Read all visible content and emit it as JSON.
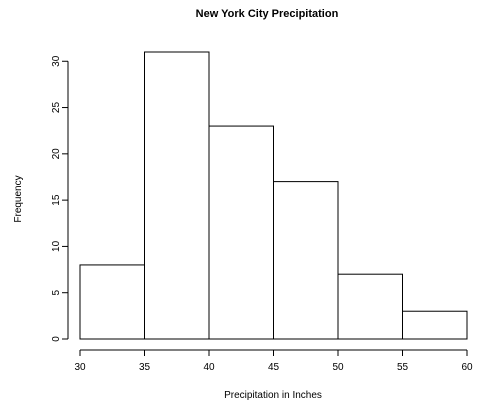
{
  "chart_data": {
    "type": "bar",
    "title": "New York City Precipitation",
    "xlabel": "Precipitation in Inches",
    "ylabel": "Frequency",
    "bins": [
      {
        "start": 30,
        "end": 35,
        "count": 8
      },
      {
        "start": 35,
        "end": 40,
        "count": 31
      },
      {
        "start": 40,
        "end": 45,
        "count": 23
      },
      {
        "start": 45,
        "end": 50,
        "count": 17
      },
      {
        "start": 50,
        "end": 55,
        "count": 7
      },
      {
        "start": 55,
        "end": 60,
        "count": 3
      }
    ],
    "xticks": [
      30,
      35,
      40,
      45,
      50,
      55,
      60
    ],
    "yticks": [
      0,
      5,
      10,
      15,
      20,
      25,
      30
    ],
    "xlim": [
      30,
      60
    ],
    "ylim": [
      0,
      31
    ],
    "grid": false,
    "colors": {
      "fill": "#ffffff",
      "stroke": "#000000"
    }
  }
}
